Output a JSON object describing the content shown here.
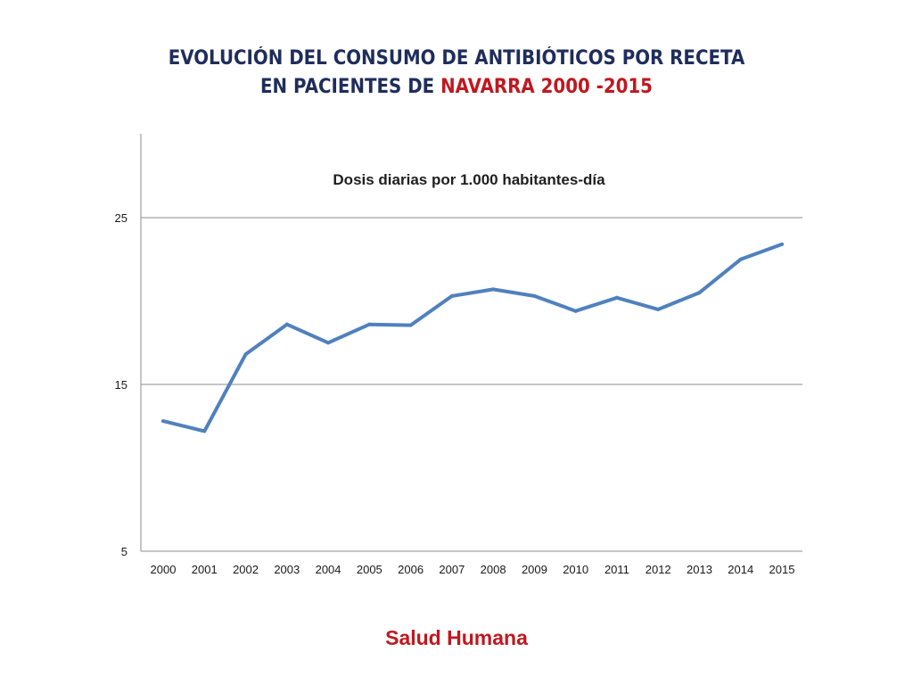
{
  "slide": {
    "title_line1": "EVOLUCIÓN DEL CONSUMO DE ANTIBIÓTICOS  POR RECETA",
    "title_line2_prefix": "EN PACIENTES DE ",
    "title_line2_highlight": "NAVARRA 2000 -2015",
    "footer": "Salud Humana"
  },
  "colors": {
    "title": "#1f2d5c",
    "highlight": "#c0181f",
    "series": "#4f81bd",
    "grid": "#8c8c8c"
  },
  "chart_data": {
    "type": "line",
    "title": "Dosis  diarias por 1.000 habitantes-día",
    "xlabel": "",
    "ylabel": "",
    "categories": [
      "2000",
      "2001",
      "2002",
      "2003",
      "2004",
      "2005",
      "2006",
      "2007",
      "2008",
      "2009",
      "2010",
      "2011",
      "2012",
      "2013",
      "2014",
      "2015"
    ],
    "series": [
      {
        "values": [
          12.8,
          12.2,
          16.8,
          18.6,
          17.5,
          18.6,
          18.55,
          20.3,
          20.7,
          20.3,
          19.4,
          20.2,
          19.5,
          20.5,
          22.5,
          23.4
        ]
      }
    ],
    "ylim": [
      5,
      30
    ],
    "yticks": [
      5,
      15,
      25
    ],
    "grid": true,
    "legend": "none"
  }
}
